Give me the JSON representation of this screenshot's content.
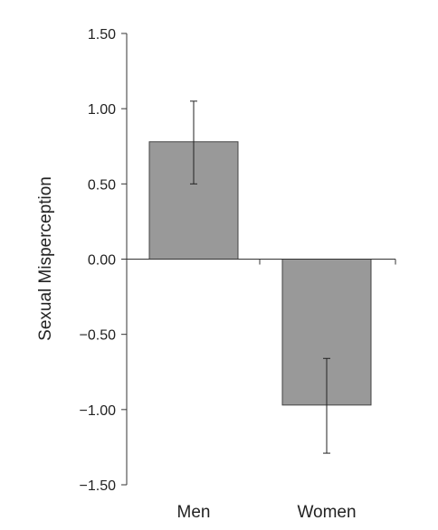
{
  "chart_data": {
    "type": "bar",
    "title": "",
    "xlabel": "",
    "ylabel": "Sexual Misperception",
    "categories": [
      "Men",
      "Women"
    ],
    "values": [
      0.78,
      -0.97
    ],
    "error_bars": [
      {
        "low": 0.5,
        "high": 1.05
      },
      {
        "low": -1.29,
        "high": -0.66
      }
    ],
    "ylim": [
      -1.5,
      1.5
    ],
    "yticks": [
      "-1.50",
      "-1.00",
      "-0.50",
      "0.00",
      "0.50",
      "1.00",
      "1.50"
    ],
    "ytick_values": [
      -1.5,
      -1.0,
      -0.5,
      0.0,
      0.5,
      1.0,
      1.5
    ],
    "grid": false,
    "legend": "none",
    "bar_color": "#999999"
  }
}
